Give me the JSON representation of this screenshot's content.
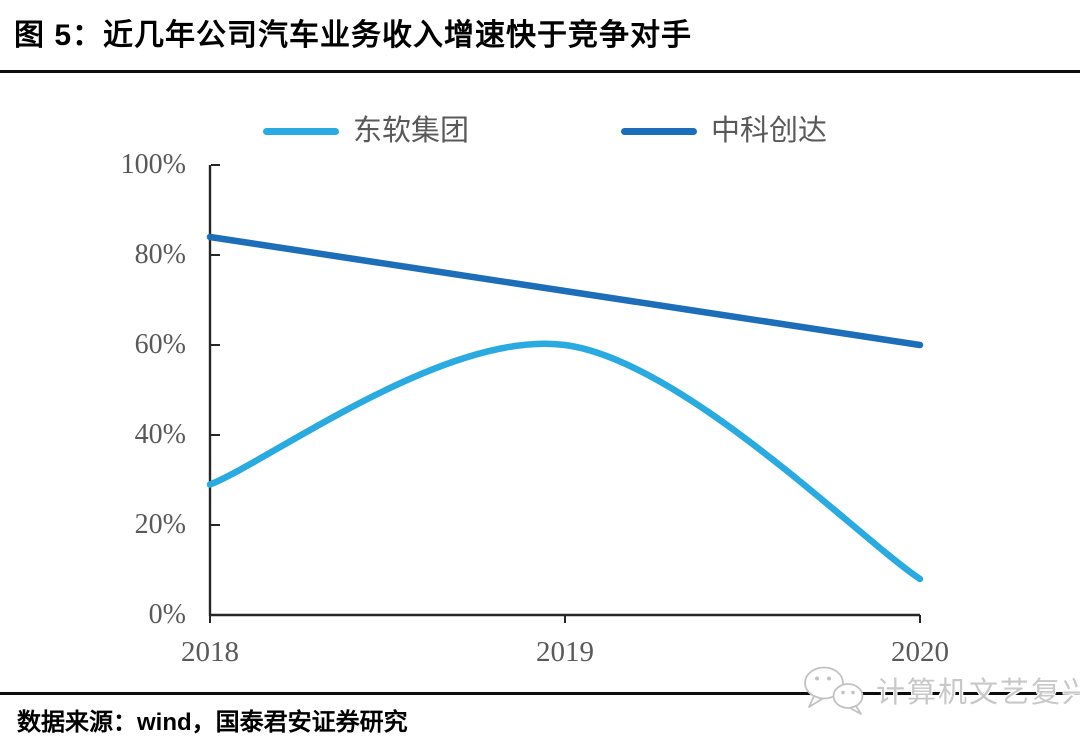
{
  "title": {
    "label": "图 5：近几年公司汽车业务收入增速快于竞争对手"
  },
  "footer": {
    "source": "数据来源：wind，国泰君安证券研究"
  },
  "watermark": {
    "icon": "wechat-icon",
    "label": "计算机文艺复兴"
  },
  "style": {
    "accent_light_blue": "#29ABE2",
    "accent_dark_blue": "#1C6EB8",
    "axis_color": "#262626",
    "label_color": "#595959",
    "rule_color": "#0d0d0d",
    "watermark_color": "#c8c8c8"
  },
  "chart_data": {
    "type": "line",
    "title": "图 5：近几年公司汽车业务收入增速快于竞争对手",
    "x": [
      "2018",
      "2019",
      "2020"
    ],
    "series": [
      {
        "name": "东软集团",
        "color": "#29ABE2",
        "values": [
          29,
          60,
          8
        ]
      },
      {
        "name": "中科创达",
        "color": "#1C6EB8",
        "values": [
          84,
          72,
          60
        ]
      }
    ],
    "values_unit": "%",
    "ylim": [
      0,
      100
    ],
    "yticks": [
      0,
      20,
      40,
      60,
      80,
      100
    ],
    "ytick_labels": [
      "0%",
      "20%",
      "40%",
      "60%",
      "80%",
      "100%"
    ],
    "xlabel": "",
    "ylabel": "",
    "grid": false,
    "legend_position": "top-center"
  }
}
